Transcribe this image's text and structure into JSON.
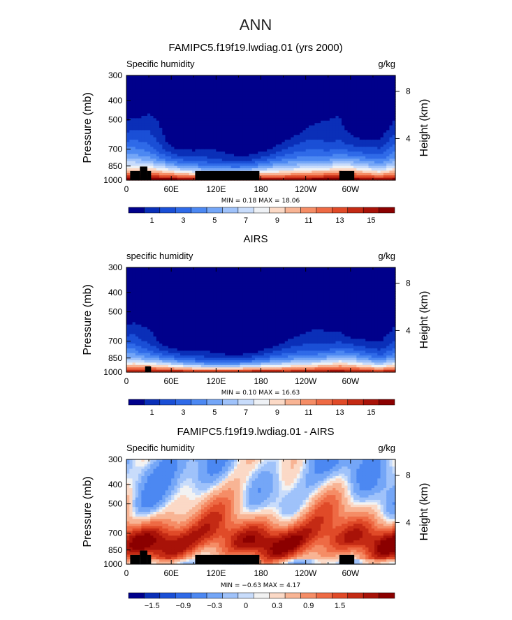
{
  "figure": {
    "season": "ANN"
  },
  "chart_data": [
    {
      "type": "heatmap",
      "title": "FAMIPC5.f19f19.lwdiag.01 (yrs 2000)",
      "variable_label": "Specific humidity",
      "units": "g/kg",
      "ylabel": "Pressure (mb)",
      "ylabel_right": "Height (km)",
      "x_ticks": [
        "0",
        "60E",
        "120E",
        "180",
        "120W",
        "60W"
      ],
      "x_tick_lon": [
        0,
        60,
        120,
        180,
        240,
        300
      ],
      "xlim": [
        0,
        360
      ],
      "y_ticks": [
        300,
        400,
        500,
        700,
        850,
        1000
      ],
      "ylim": [
        1000,
        300
      ],
      "y_right_ticks": [
        "8",
        "4"
      ],
      "y_right_tick_p": [
        360,
        620
      ],
      "stats": "MIN =    0.18   MAX =   18.06",
      "min": 0.18,
      "max": 18.06,
      "colorbar_labels": [
        "1",
        "3",
        "5",
        "7",
        "9",
        "11",
        "13",
        "15"
      ],
      "colorbar_levels": [
        0,
        1,
        2,
        3,
        4,
        5,
        6,
        7,
        8,
        9,
        10,
        11,
        12,
        13,
        14,
        15,
        16
      ],
      "scheme": "moist",
      "profile": {
        "lon": [
          0,
          10,
          20,
          30,
          40,
          55,
          70,
          90,
          110,
          130,
          150,
          170,
          190,
          210,
          230,
          250,
          270,
          285,
          300,
          320,
          340,
          360
        ],
        "p_half": [
          530,
          520,
          540,
          545,
          580,
          660,
          715,
          745,
          760,
          760,
          765,
          750,
          720,
          680,
          640,
          600,
          590,
          560,
          600,
          650,
          680,
          560
        ]
      },
      "terrain": [
        {
          "lon0": 5,
          "lon1": 18,
          "p": 900
        },
        {
          "lon0": 18,
          "lon1": 28,
          "p": 855
        },
        {
          "lon0": 28,
          "lon1": 33,
          "p": 900
        },
        {
          "lon0": 92,
          "lon1": 178,
          "p": 900
        },
        {
          "lon0": 285,
          "lon1": 305,
          "p": 900
        }
      ]
    },
    {
      "type": "heatmap",
      "title": "AIRS",
      "variable_label": "specific humidity",
      "units": "g/kg",
      "ylabel": "Pressure (mb)",
      "ylabel_right": "Height (km)",
      "x_ticks": [
        "0",
        "60E",
        "120E",
        "180",
        "120W",
        "60W"
      ],
      "x_tick_lon": [
        0,
        60,
        120,
        180,
        240,
        300
      ],
      "xlim": [
        0,
        360
      ],
      "y_ticks": [
        300,
        400,
        500,
        700,
        850,
        1000
      ],
      "ylim": [
        1000,
        300
      ],
      "y_right_ticks": [
        "8",
        "4"
      ],
      "y_right_tick_p": [
        360,
        620
      ],
      "stats": "MIN =    0.10   MAX =   16.63",
      "min": 0.1,
      "max": 16.63,
      "colorbar_labels": [
        "1",
        "3",
        "5",
        "7",
        "9",
        "11",
        "13",
        "15"
      ],
      "colorbar_levels": [
        0,
        1,
        2,
        3,
        4,
        5,
        6,
        7,
        8,
        9,
        10,
        11,
        12,
        13,
        14,
        15,
        16
      ],
      "scheme": "moist",
      "profile": {
        "lon": [
          0,
          10,
          20,
          30,
          40,
          55,
          70,
          90,
          110,
          130,
          150,
          170,
          190,
          210,
          230,
          250,
          270,
          285,
          300,
          320,
          340,
          360
        ],
        "p_half": [
          620,
          610,
          650,
          660,
          690,
          745,
          785,
          810,
          815,
          815,
          815,
          805,
          780,
          745,
          705,
          670,
          650,
          620,
          665,
          720,
          750,
          650
        ]
      },
      "terrain": [
        {
          "lon0": 25,
          "lon1": 33,
          "p": 935
        }
      ]
    },
    {
      "type": "heatmap",
      "title": "FAMIPC5.f19f19.lwdiag.01 - AIRS",
      "variable_label": "Specific humidity",
      "units": "g/kg",
      "ylabel": "Pressure (mb)",
      "ylabel_right": "Height (km)",
      "x_ticks": [
        "0",
        "60E",
        "120E",
        "180",
        "120W",
        "60W"
      ],
      "x_tick_lon": [
        0,
        60,
        120,
        180,
        240,
        300
      ],
      "xlim": [
        0,
        360
      ],
      "y_ticks": [
        300,
        400,
        500,
        700,
        850,
        1000
      ],
      "ylim": [
        1000,
        300
      ],
      "y_right_ticks": [
        "8",
        "4"
      ],
      "y_right_tick_p": [
        360,
        620
      ],
      "stats": "MIN =   −0.63   MAX =    4.17",
      "min": -0.63,
      "max": 4.17,
      "colorbar_labels": [
        "−1.5",
        "−0.9",
        "−0.3",
        "0",
        "0.3",
        "0.9",
        "1.5"
      ],
      "colorbar_levels": [
        -2.1,
        -1.8,
        -1.5,
        -1.2,
        -0.9,
        -0.6,
        -0.3,
        -0.1,
        0,
        0.1,
        0.3,
        0.6,
        0.9,
        1.2,
        1.5,
        1.8,
        2.1
      ],
      "scheme": "diff",
      "terrain": [
        {
          "lon0": 5,
          "lon1": 18,
          "p": 900
        },
        {
          "lon0": 18,
          "lon1": 28,
          "p": 855
        },
        {
          "lon0": 28,
          "lon1": 33,
          "p": 900
        },
        {
          "lon0": 92,
          "lon1": 178,
          "p": 900
        },
        {
          "lon0": 285,
          "lon1": 305,
          "p": 900
        }
      ]
    }
  ],
  "palettes": {
    "moist": [
      "#00008b",
      "#0a2fb8",
      "#1a4fd6",
      "#2f6ae8",
      "#4c88f2",
      "#74a6f7",
      "#9fc2fa",
      "#c8dcfb",
      "#eef1f5",
      "#fbd9c6",
      "#f8b494",
      "#f58d66",
      "#ee6a44",
      "#e04a28",
      "#c42a14",
      "#a81208",
      "#8b0000"
    ],
    "diff": [
      "#00008b",
      "#0a2fb8",
      "#1a4fd6",
      "#2f6ae8",
      "#4c88f2",
      "#74a6f7",
      "#9fc2fa",
      "#c8dcfb",
      "#f2f2f2",
      "#fbd9c6",
      "#f8b494",
      "#f58d66",
      "#ee6a44",
      "#e04a28",
      "#c42a14",
      "#a81208",
      "#8b0000"
    ],
    "terrain": "#000000"
  }
}
